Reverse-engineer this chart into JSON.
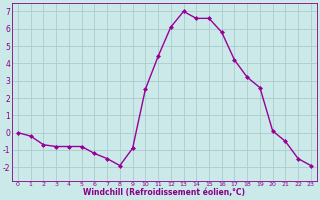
{
  "x": [
    0,
    1,
    2,
    3,
    4,
    5,
    6,
    7,
    8,
    9,
    10,
    11,
    12,
    13,
    14,
    15,
    16,
    17,
    18,
    19,
    20,
    21,
    22,
    23
  ],
  "y": [
    0,
    -0.2,
    -0.7,
    -0.8,
    -0.8,
    -0.8,
    -1.2,
    -1.5,
    -1.9,
    -0.9,
    2.5,
    4.4,
    6.1,
    7.0,
    6.6,
    6.6,
    5.8,
    4.2,
    3.2,
    2.6,
    0.1,
    -0.5,
    -1.5,
    -1.9
  ],
  "line_color": "#990099",
  "marker_color": "#990099",
  "bg_color": "#cce9e9",
  "grid_color": "#aacccc",
  "xlabel": "Windchill (Refroidissement éolien,°C)",
  "tick_color": "#880088",
  "ylim": [
    -2.8,
    7.5
  ],
  "xlim": [
    -0.5,
    23.5
  ],
  "yticks": [
    -2,
    -1,
    0,
    1,
    2,
    3,
    4,
    5,
    6,
    7
  ],
  "xticks": [
    0,
    1,
    2,
    3,
    4,
    5,
    6,
    7,
    8,
    9,
    10,
    11,
    12,
    13,
    14,
    15,
    16,
    17,
    18,
    19,
    20,
    21,
    22,
    23
  ],
  "figsize": [
    3.2,
    2.0
  ],
  "dpi": 100
}
